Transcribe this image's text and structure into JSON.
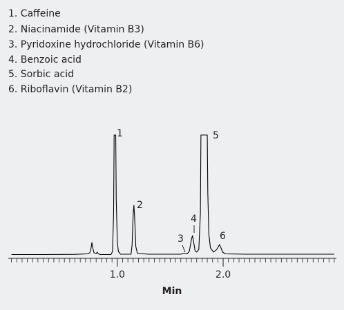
{
  "chart_data": {
    "type": "line",
    "compounds": [
      "1. Caffeine",
      "2. Niacinamide (Vitamin B3)",
      "3. Pyridoxine hydrochloride (Vitamin B6)",
      "4. Benzoic acid",
      "5. Sorbic acid",
      "6. Riboflavin (Vitamin B2)"
    ],
    "x_label": "Min",
    "annotations": [
      "1",
      "2",
      "3",
      "4",
      "5",
      "6"
    ],
    "color": "#000000",
    "x": [
      0.0,
      0.3,
      0.6,
      0.72,
      0.74,
      0.75,
      0.76,
      0.77,
      0.78,
      0.8,
      0.81,
      0.82,
      0.84,
      0.94,
      0.955,
      0.965,
      0.97,
      0.985,
      0.99,
      1.0,
      1.01,
      1.03,
      1.13,
      1.14,
      1.15,
      1.157,
      1.165,
      1.175,
      1.19,
      1.3,
      1.6,
      1.63,
      1.66,
      1.68,
      1.7,
      1.71,
      1.72,
      1.735,
      1.75,
      1.77,
      1.785,
      1.79,
      1.85,
      1.855,
      1.865,
      1.88,
      1.91,
      1.94,
      1.965,
      1.98,
      1.995,
      2.02,
      2.2,
      2.6,
      3.05
    ],
    "values": [
      0.5,
      0.5,
      0.8,
      1.5,
      3,
      8,
      18,
      9,
      3,
      2,
      4,
      1.5,
      0.5,
      0.5,
      5,
      60,
      174,
      174,
      80,
      20,
      5,
      1,
      1,
      15,
      60,
      72,
      50,
      12,
      2,
      1,
      1,
      2.5,
      1.5,
      5,
      22,
      28,
      20,
      6,
      4,
      8,
      60,
      174,
      174,
      90,
      30,
      10,
      4,
      8,
      15,
      10,
      4,
      1.5,
      1,
      1,
      1
    ],
    "xlim": [
      -0.03,
      3.07
    ],
    "ylim": [
      0,
      180
    ],
    "xticks": [
      {
        "value": 1,
        "label": "1.0"
      },
      {
        "value": 2,
        "label": "2.0"
      }
    ],
    "minor_xticks": [
      0,
      0.05,
      0.1,
      0.15,
      0.2,
      0.25,
      0.3,
      0.35,
      0.4,
      0.45,
      0.5,
      0.55,
      0.6,
      0.65,
      0.7,
      0.75,
      0.8,
      0.85,
      0.9,
      0.95,
      1.05,
      1.1,
      1.15,
      1.2,
      1.25,
      1.3,
      1.35,
      1.4,
      1.45,
      1.5,
      1.55,
      1.6,
      1.65,
      1.7,
      1.75,
      1.8,
      1.85,
      1.9,
      1.95,
      2.05,
      2.1,
      2.15,
      2.2,
      2.25,
      2.3,
      2.35,
      2.4,
      2.45,
      2.5,
      2.55,
      2.6,
      2.65,
      2.7,
      2.75,
      2.8,
      2.85,
      2.9,
      2.95,
      3.0,
      3.05
    ]
  }
}
